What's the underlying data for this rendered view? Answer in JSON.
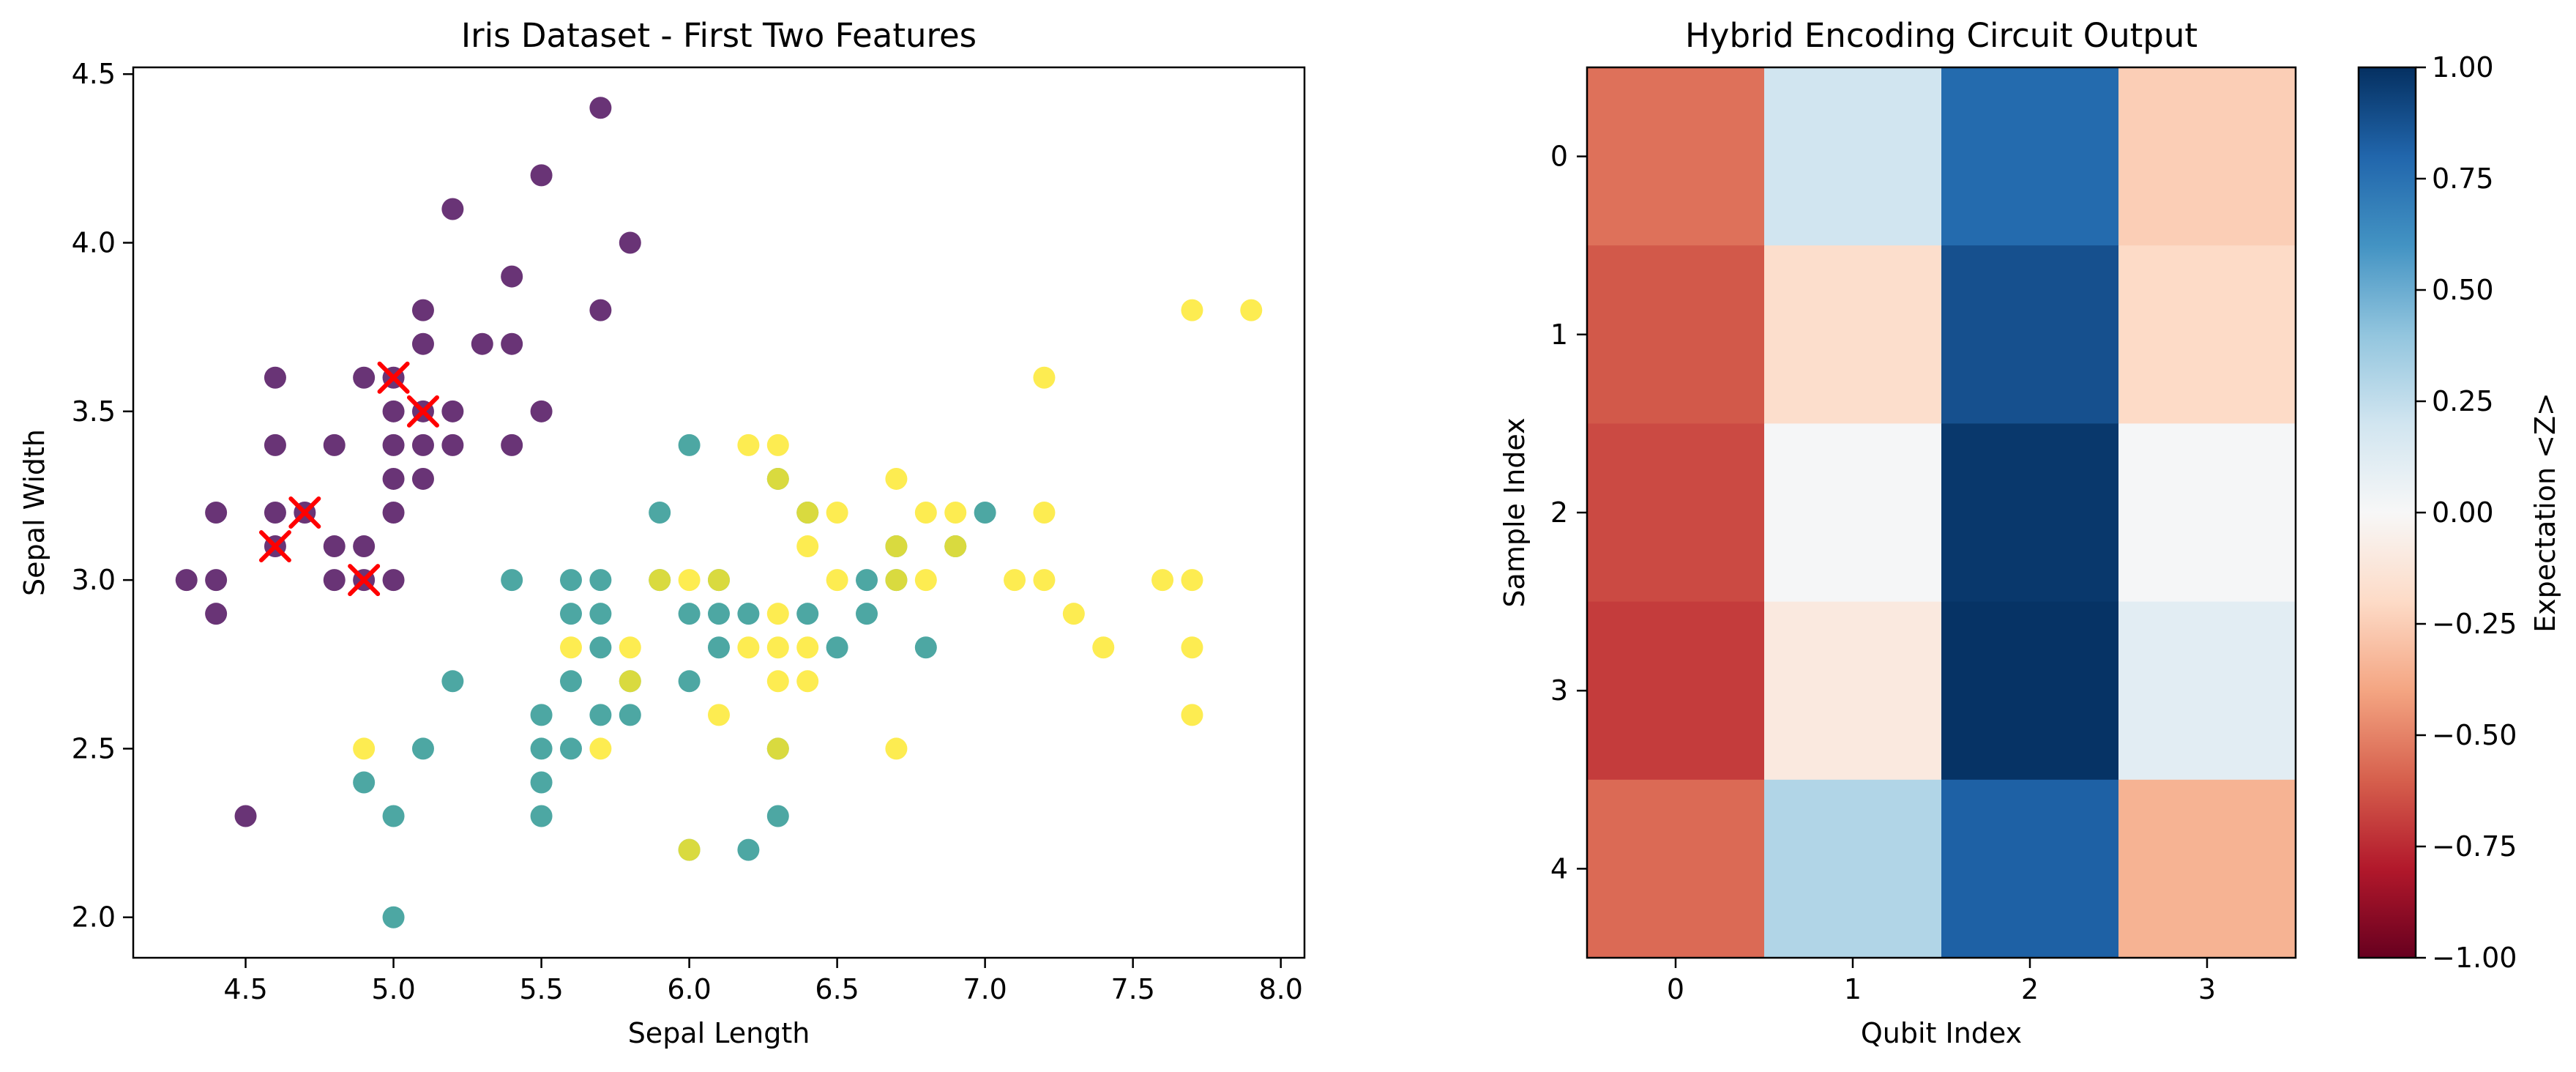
{
  "chart_data": [
    {
      "type": "scatter",
      "title": "Iris Dataset - First Two Features",
      "xlabel": "Sepal Length",
      "ylabel": "Sepal Width",
      "xlim": [
        4.12,
        8.08
      ],
      "ylim": [
        1.88,
        4.52
      ],
      "xticks": [
        "4.5",
        "5.0",
        "5.5",
        "6.0",
        "6.5",
        "7.0",
        "7.5",
        "8.0"
      ],
      "yticks": [
        "2.0",
        "2.5",
        "3.0",
        "3.5",
        "4.0",
        "4.5"
      ],
      "colors": {
        "class_0": "#440154",
        "class_1": "#21918c",
        "class_2": "#fde725",
        "highlight": "#ff0000"
      },
      "series": [
        {
          "color_key": "class_0",
          "points": [
            [
              4.3,
              3.0
            ],
            [
              4.4,
              2.9
            ],
            [
              4.4,
              3.0
            ],
            [
              4.4,
              3.2
            ],
            [
              4.5,
              2.3
            ],
            [
              4.6,
              3.1
            ],
            [
              4.6,
              3.2
            ],
            [
              4.6,
              3.4
            ],
            [
              4.6,
              3.6
            ],
            [
              4.7,
              3.2
            ],
            [
              4.8,
              3.0
            ],
            [
              4.8,
              3.1
            ],
            [
              4.8,
              3.4
            ],
            [
              4.9,
              3.0
            ],
            [
              4.9,
              3.1
            ],
            [
              4.9,
              3.6
            ],
            [
              5.0,
              3.0
            ],
            [
              5.0,
              3.2
            ],
            [
              5.0,
              3.3
            ],
            [
              5.0,
              3.4
            ],
            [
              5.0,
              3.5
            ],
            [
              5.0,
              3.6
            ],
            [
              5.1,
              3.3
            ],
            [
              5.1,
              3.4
            ],
            [
              5.1,
              3.5
            ],
            [
              5.1,
              3.7
            ],
            [
              5.1,
              3.8
            ],
            [
              5.2,
              3.4
            ],
            [
              5.2,
              3.5
            ],
            [
              5.2,
              4.1
            ],
            [
              5.3,
              3.7
            ],
            [
              5.4,
              3.4
            ],
            [
              5.4,
              3.7
            ],
            [
              5.4,
              3.9
            ],
            [
              5.5,
              3.5
            ],
            [
              5.5,
              4.2
            ],
            [
              5.7,
              3.8
            ],
            [
              5.7,
              4.4
            ],
            [
              5.8,
              4.0
            ]
          ]
        },
        {
          "color_key": "class_1",
          "points": [
            [
              4.9,
              2.4
            ],
            [
              5.0,
              2.0
            ],
            [
              5.0,
              2.3
            ],
            [
              5.1,
              2.5
            ],
            [
              5.2,
              2.7
            ],
            [
              5.4,
              3.0
            ],
            [
              5.5,
              2.3
            ],
            [
              5.5,
              2.4
            ],
            [
              5.5,
              2.5
            ],
            [
              5.5,
              2.6
            ],
            [
              5.6,
              2.5
            ],
            [
              5.6,
              2.7
            ],
            [
              5.6,
              2.9
            ],
            [
              5.6,
              3.0
            ],
            [
              5.7,
              2.6
            ],
            [
              5.7,
              2.8
            ],
            [
              5.7,
              2.9
            ],
            [
              5.7,
              3.0
            ],
            [
              5.8,
              2.6
            ],
            [
              5.8,
              2.7
            ],
            [
              5.9,
              3.0
            ],
            [
              5.9,
              3.2
            ],
            [
              6.0,
              2.2
            ],
            [
              6.0,
              2.7
            ],
            [
              6.0,
              2.9
            ],
            [
              6.0,
              3.4
            ],
            [
              6.1,
              2.8
            ],
            [
              6.1,
              2.9
            ],
            [
              6.1,
              3.0
            ],
            [
              6.2,
              2.2
            ],
            [
              6.2,
              2.9
            ],
            [
              6.3,
              2.3
            ],
            [
              6.3,
              2.5
            ],
            [
              6.3,
              3.3
            ],
            [
              6.4,
              2.9
            ],
            [
              6.4,
              3.2
            ],
            [
              6.5,
              2.8
            ],
            [
              6.6,
              2.9
            ],
            [
              6.6,
              3.0
            ],
            [
              6.7,
              3.0
            ],
            [
              6.7,
              3.1
            ],
            [
              6.8,
              2.8
            ],
            [
              6.9,
              3.1
            ],
            [
              7.0,
              3.2
            ]
          ]
        },
        {
          "color_key": "class_2",
          "points": [
            [
              4.9,
              2.5
            ],
            [
              5.6,
              2.8
            ],
            [
              5.7,
              2.5
            ],
            [
              5.8,
              2.7
            ],
            [
              5.8,
              2.8
            ],
            [
              5.9,
              3.0
            ],
            [
              6.0,
              2.2
            ],
            [
              6.0,
              3.0
            ],
            [
              6.1,
              2.6
            ],
            [
              6.1,
              3.0
            ],
            [
              6.2,
              2.8
            ],
            [
              6.2,
              3.4
            ],
            [
              6.3,
              2.5
            ],
            [
              6.3,
              2.7
            ],
            [
              6.3,
              2.8
            ],
            [
              6.3,
              2.9
            ],
            [
              6.3,
              3.3
            ],
            [
              6.3,
              3.4
            ],
            [
              6.4,
              2.7
            ],
            [
              6.4,
              2.8
            ],
            [
              6.4,
              3.1
            ],
            [
              6.4,
              3.2
            ],
            [
              6.5,
              3.0
            ],
            [
              6.5,
              3.2
            ],
            [
              6.7,
              2.5
            ],
            [
              6.7,
              3.0
            ],
            [
              6.7,
              3.1
            ],
            [
              6.7,
              3.3
            ],
            [
              6.8,
              3.0
            ],
            [
              6.8,
              3.2
            ],
            [
              6.9,
              3.1
            ],
            [
              6.9,
              3.2
            ],
            [
              7.1,
              3.0
            ],
            [
              7.2,
              3.0
            ],
            [
              7.2,
              3.2
            ],
            [
              7.2,
              3.6
            ],
            [
              7.3,
              2.9
            ],
            [
              7.4,
              2.8
            ],
            [
              7.6,
              3.0
            ],
            [
              7.7,
              2.6
            ],
            [
              7.7,
              2.8
            ],
            [
              7.7,
              3.0
            ],
            [
              7.7,
              3.8
            ],
            [
              7.9,
              3.8
            ]
          ]
        },
        {
          "color_key": "highlight",
          "marker": "x",
          "points": [
            [
              5.1,
              3.5
            ],
            [
              4.9,
              3.0
            ],
            [
              4.7,
              3.2
            ],
            [
              4.6,
              3.1
            ],
            [
              5.0,
              3.6
            ]
          ]
        }
      ]
    },
    {
      "type": "heatmap",
      "title": "Hybrid Encoding Circuit Output",
      "xlabel": "Qubit Index",
      "ylabel": "Sample Index",
      "x_categories": [
        "0",
        "1",
        "2",
        "3"
      ],
      "y_categories": [
        "0",
        "1",
        "2",
        "3",
        "4"
      ],
      "values": [
        [
          -0.55,
          0.2,
          0.78,
          -0.25
        ],
        [
          -0.62,
          -0.18,
          0.88,
          -0.2
        ],
        [
          -0.66,
          0.01,
          0.97,
          0.01
        ],
        [
          -0.7,
          -0.1,
          0.99,
          0.11
        ],
        [
          -0.57,
          0.3,
          0.82,
          -0.35
        ]
      ],
      "colorbar": {
        "label": "Expectation <Z>",
        "range": [
          -1.0,
          1.0
        ],
        "ticks": [
          "−1.00",
          "−0.75",
          "−0.50",
          "−0.25",
          "0.00",
          "0.25",
          "0.50",
          "0.75",
          "1.00"
        ],
        "colormap": "RdBu"
      }
    }
  ]
}
